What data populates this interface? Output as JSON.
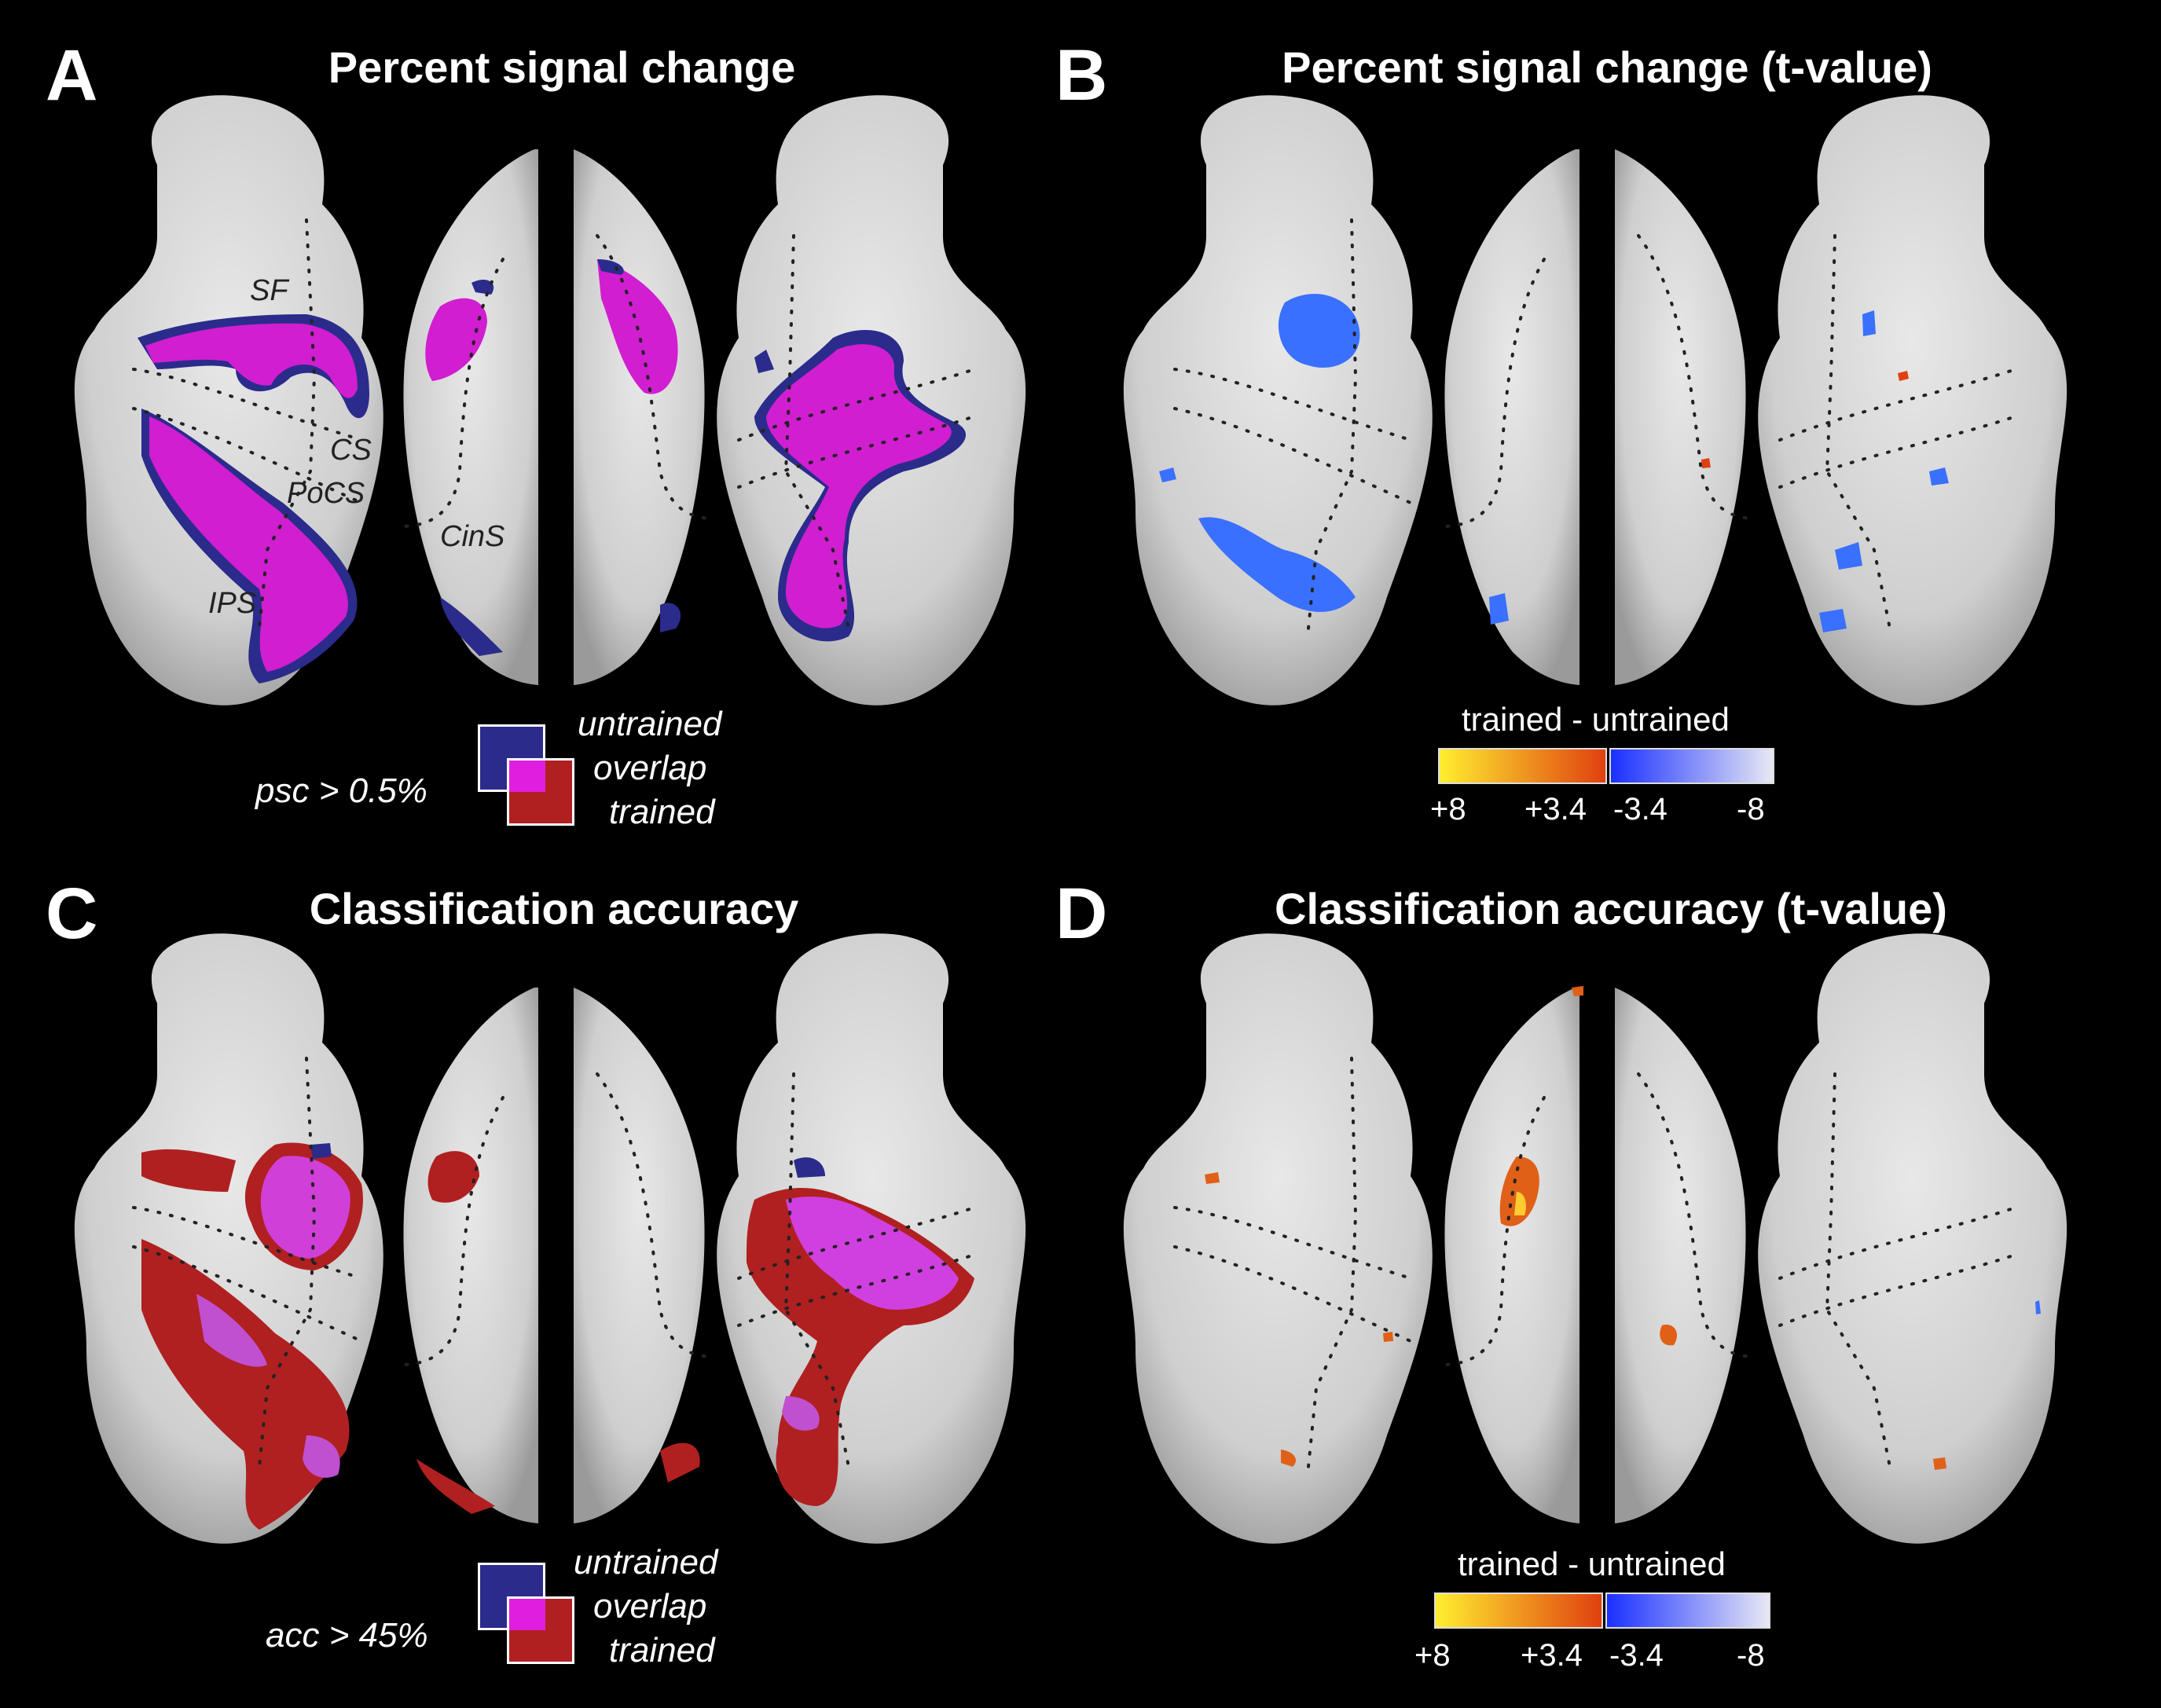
{
  "panels": [
    {
      "letter": "A",
      "title": "Percent signal change",
      "type": "overlap",
      "threshold": "psc > 0.5%",
      "legend": [
        "untrained",
        "overlap",
        "trained"
      ],
      "sulcus_labels": [
        "SF",
        "CS",
        "PoCS",
        "CinS",
        "IPS"
      ]
    },
    {
      "letter": "B",
      "title": "Percent signal change (t-value)",
      "type": "tmap",
      "colorbar_title": "trained - untrained",
      "ticks": [
        "+8",
        "+3.4",
        "-3.4",
        "-8"
      ]
    },
    {
      "letter": "C",
      "title": "Classification accuracy",
      "type": "overlap",
      "threshold": "acc > 45%",
      "legend": [
        "untrained",
        "overlap",
        "trained"
      ]
    },
    {
      "letter": "D",
      "title": "Classification accuracy (t-value)",
      "type": "tmap",
      "colorbar_title": "trained - untrained",
      "ticks": [
        "+8",
        "+3.4",
        "-3.4",
        "-8"
      ]
    }
  ],
  "colors": {
    "untrained": "#2b2b8c",
    "overlap": "#e01ee0",
    "trained": "#b02020",
    "positive_low": "#e04010",
    "positive_high": "#ffee30",
    "negative_low": "#1a30ff",
    "negative_high": "#e8e8f4",
    "brain": "#d4d4d4"
  }
}
